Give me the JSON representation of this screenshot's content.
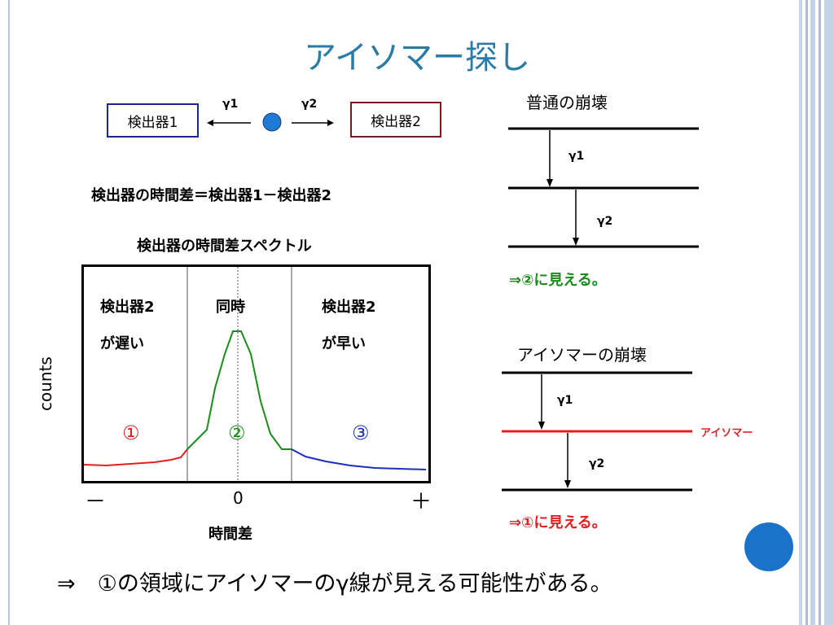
{
  "title": "アイソマー探し",
  "setup": {
    "detector1": "検出器1",
    "detector2": "検出器2",
    "gamma1": "γ1",
    "gamma2": "γ2",
    "formula": "検出器の時間差＝検出器1－検出器2"
  },
  "spectrum": {
    "title": "検出器の時間差スペクトル",
    "ylabel": "counts",
    "xlabel": "時間差",
    "region_left_line1": "検出器2",
    "region_left_line2": "が遅い",
    "region_mid": "同時",
    "region_right_line1": "検出器2",
    "region_right_line2": "が早い",
    "marker1": "①",
    "marker2": "②",
    "marker3": "③",
    "tick_minus": "－",
    "tick_zero": "0",
    "tick_plus": "＋",
    "colors": {
      "left": "#e02020",
      "mid": "#1a8c1a",
      "right": "#1a2fc0"
    }
  },
  "normal_decay": {
    "title": "普通の崩壊",
    "gamma1": "γ1",
    "gamma2": "γ2",
    "result": "⇒②に見える。",
    "result_color": "#1a8c1a"
  },
  "isomer_decay": {
    "title": "アイソマーの崩壊",
    "gamma1": "γ1",
    "gamma2": "γ2",
    "isomer_label": "アイソマー",
    "result": "⇒①に見える。",
    "isomer_color": "#e02020",
    "result_color": "#e02020"
  },
  "conclusion": "⇒　①の領域にアイソマーのγ線が見える可能性がある。"
}
